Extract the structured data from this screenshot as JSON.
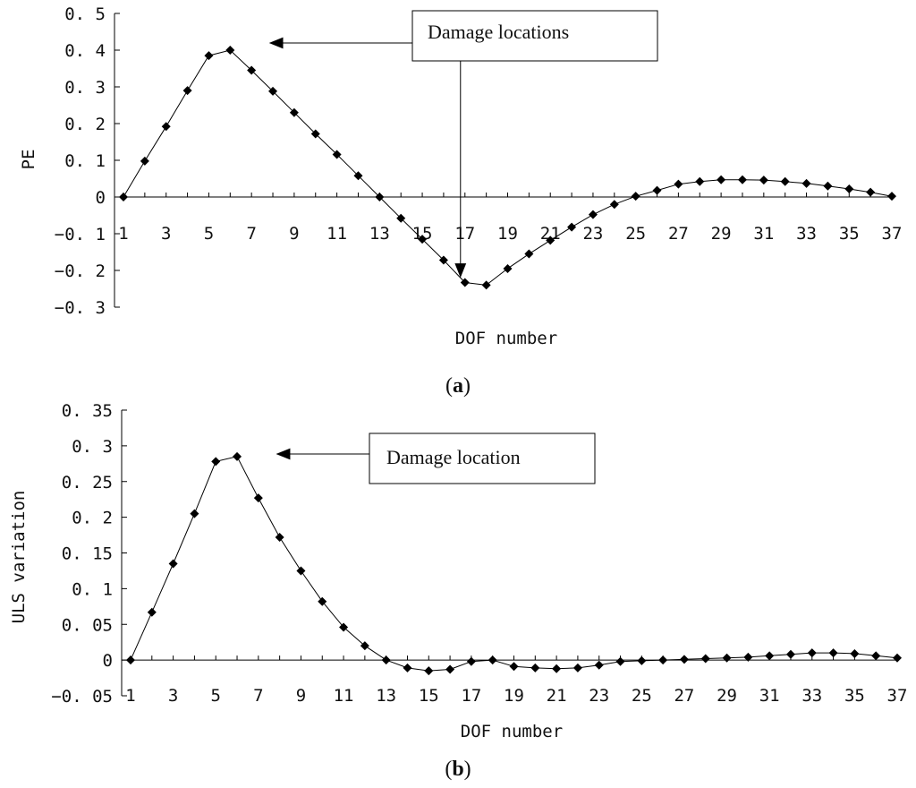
{
  "chart_data": [
    {
      "type": "line",
      "panel_label": "a",
      "xlabel": "DOF number",
      "ylabel": "PE",
      "xlim": [
        1,
        37
      ],
      "ylim": [
        -0.3,
        0.5
      ],
      "y_ticks": [
        0.5,
        0.4,
        0.3,
        0.2,
        0.1,
        0,
        -0.1,
        -0.2,
        -0.3
      ],
      "y_tick_labels": [
        "0.5",
        "0.4",
        "0.3",
        "0.2",
        "0.1",
        "0",
        "-0.1",
        "-0.2",
        "-0.3"
      ],
      "x_ticks": [
        1,
        3,
        5,
        7,
        9,
        11,
        13,
        15,
        17,
        19,
        21,
        23,
        25,
        27,
        29,
        31,
        33,
        35,
        37
      ],
      "x_tick_labels": [
        "1",
        "3",
        "5",
        "7",
        "9",
        "11",
        "13",
        "15",
        "17",
        "19",
        "21",
        "23",
        "25",
        "27",
        "29",
        "31",
        "33",
        "35",
        "37"
      ],
      "grid": false,
      "marker": "diamond",
      "x": [
        1,
        2,
        3,
        4,
        5,
        6,
        7,
        8,
        9,
        10,
        11,
        12,
        13,
        14,
        15,
        16,
        17,
        18,
        19,
        20,
        21,
        22,
        23,
        24,
        25,
        26,
        27,
        28,
        29,
        30,
        31,
        32,
        33,
        34,
        35,
        36,
        37
      ],
      "values": [
        0,
        0.098,
        0.192,
        0.29,
        0.385,
        0.4,
        0.345,
        0.288,
        0.23,
        0.172,
        0.116,
        0.058,
        0,
        -0.058,
        -0.115,
        -0.172,
        -0.233,
        -0.24,
        -0.195,
        -0.155,
        -0.118,
        -0.082,
        -0.048,
        -0.02,
        0.002,
        0.018,
        0.035,
        0.042,
        0.047,
        0.047,
        0.046,
        0.042,
        0.037,
        0.03,
        0.022,
        0.013,
        0.002
      ],
      "annotation": {
        "text": "Damage locations",
        "targets": [
          [
            6,
            0.4
          ],
          [
            18,
            -0.15
          ]
        ]
      }
    },
    {
      "type": "line",
      "panel_label": "b",
      "xlabel": "DOF number",
      "ylabel": "ULS variation",
      "xlim": [
        1,
        37
      ],
      "ylim": [
        -0.05,
        0.35
      ],
      "y_ticks": [
        0.35,
        0.3,
        0.25,
        0.2,
        0.15,
        0.1,
        0.05,
        0,
        -0.05
      ],
      "y_tick_labels": [
        "0.35",
        "0.3",
        "0.25",
        "0.2",
        "0.15",
        "0.1",
        "0.05",
        "0",
        "-0.05"
      ],
      "x_ticks": [
        1,
        3,
        5,
        7,
        9,
        11,
        13,
        15,
        17,
        19,
        21,
        23,
        25,
        27,
        29,
        31,
        33,
        35,
        37
      ],
      "x_tick_labels": [
        "1",
        "3",
        "5",
        "7",
        "9",
        "11",
        "13",
        "15",
        "17",
        "19",
        "21",
        "23",
        "25",
        "27",
        "29",
        "31",
        "33",
        "35",
        "37"
      ],
      "grid": false,
      "marker": "diamond",
      "x": [
        1,
        2,
        3,
        4,
        5,
        6,
        7,
        8,
        9,
        10,
        11,
        12,
        13,
        14,
        15,
        16,
        17,
        18,
        19,
        20,
        21,
        22,
        23,
        24,
        25,
        26,
        27,
        28,
        29,
        30,
        31,
        32,
        33,
        34,
        35,
        36,
        37
      ],
      "values": [
        0,
        0.067,
        0.135,
        0.205,
        0.278,
        0.285,
        0.227,
        0.172,
        0.125,
        0.082,
        0.046,
        0.02,
        0,
        -0.011,
        -0.015,
        -0.013,
        -0.002,
        0,
        -0.009,
        -0.011,
        -0.012,
        -0.011,
        -0.007,
        -0.002,
        -0.001,
        0,
        0.001,
        0.002,
        0.003,
        0.004,
        0.006,
        0.008,
        0.01,
        0.01,
        0.009,
        0.006,
        0.003
      ],
      "annotation": {
        "text": "Damage location",
        "targets": [
          [
            6,
            0.285
          ]
        ]
      }
    }
  ]
}
